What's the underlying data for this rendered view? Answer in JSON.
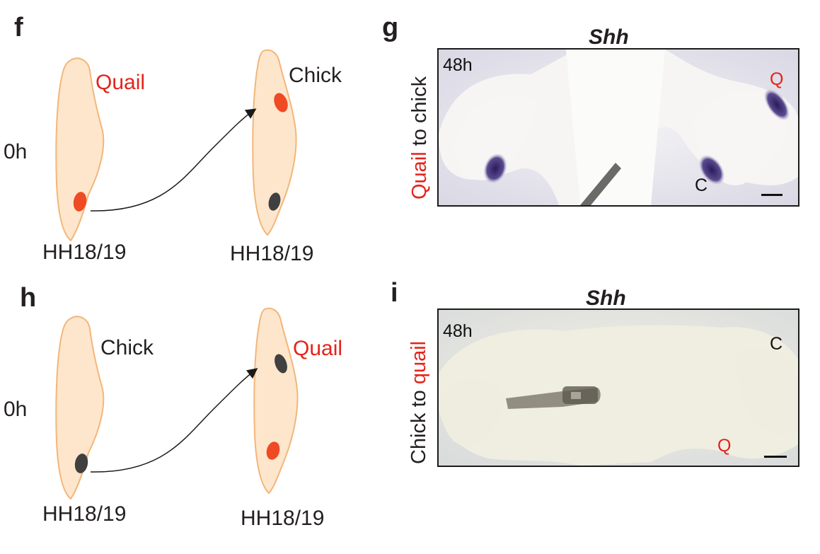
{
  "panels": {
    "f": {
      "letter": "f",
      "time": "0h",
      "left_species": "Quail",
      "right_species": "Chick",
      "left_stage": "HH18/19",
      "right_stage": "HH18/19"
    },
    "g": {
      "letter": "g",
      "title": "Shh",
      "time": "48h",
      "side_label_red": "Quail",
      "side_label_rest": " to chick",
      "mark_q": "Q",
      "mark_c": "C"
    },
    "h": {
      "letter": "h",
      "time": "0h",
      "left_species": "Chick",
      "right_species": "Quail",
      "left_stage": "HH18/19",
      "right_stage": "HH18/19"
    },
    "i": {
      "letter": "i",
      "title": "Shh",
      "time": "48h",
      "side_label_rest": "Chick to ",
      "side_label_red": "quail",
      "mark_c": "C",
      "mark_q": "Q"
    }
  },
  "colors": {
    "limb_fill": "#fde6cc",
    "limb_edge": "#f3b67a",
    "quail_red": "#e3241b",
    "graft_red": "#ef4a24",
    "graft_dark": "#404040",
    "shh_stain": "#3a2a6e"
  }
}
